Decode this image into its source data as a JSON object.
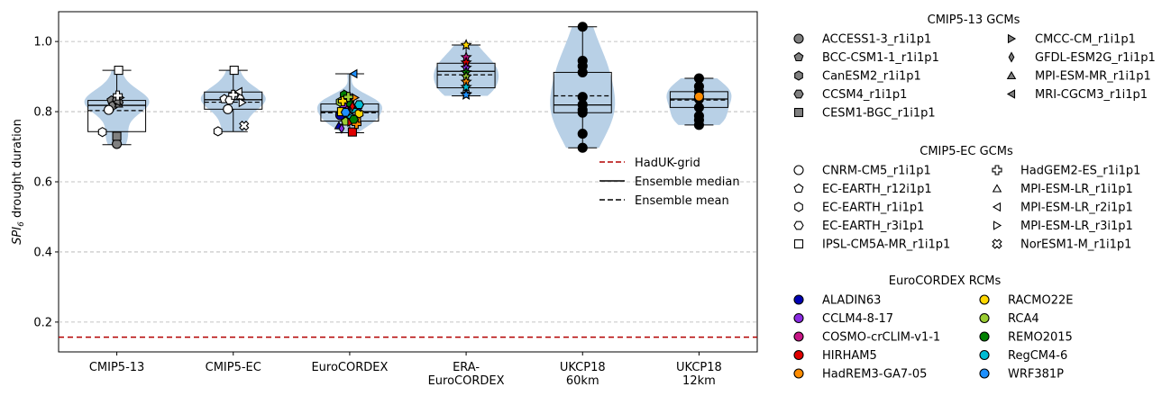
{
  "chart_data": {
    "type": "violin-box-scatter",
    "ylabel": "SPI_6 drought duration",
    "ylabel_parts": {
      "base": "SPI",
      "sub": "6",
      "rest": " drought duration"
    },
    "ylim": [
      0.115,
      1.085
    ],
    "yticks": [
      "0.2",
      "0.4",
      "0.6",
      "0.8",
      "1.0"
    ],
    "grid": "y",
    "reference": {
      "name": "HadUK-grid",
      "value": 0.157,
      "color": "#b30000"
    },
    "categories": [
      {
        "name": "CMIP5-13",
        "lines": [
          "CMIP5-13"
        ],
        "stats": {
          "min": 0.706,
          "q1": 0.743,
          "median": 0.818,
          "mean": 0.803,
          "q3": 0.832,
          "max": 0.918
        }
      },
      {
        "name": "CMIP5-EC",
        "lines": [
          "CMIP5-EC"
        ],
        "stats": {
          "min": 0.743,
          "q1": 0.807,
          "median": 0.834,
          "mean": 0.827,
          "q3": 0.856,
          "max": 0.918
        }
      },
      {
        "name": "EuroCORDEX",
        "lines": [
          "EuroCORDEX"
        ],
        "stats": {
          "min": 0.74,
          "q1": 0.773,
          "median": 0.8,
          "mean": 0.797,
          "q3": 0.822,
          "max": 0.908
        }
      },
      {
        "name": "ERA-EuroCORDEX",
        "lines": [
          "ERA-",
          "EuroCORDEX"
        ],
        "stats": {
          "min": 0.845,
          "q1": 0.868,
          "median": 0.915,
          "mean": 0.905,
          "q3": 0.938,
          "max": 0.99
        }
      },
      {
        "name": "UKCP18 60km",
        "lines": [
          "UKCP18",
          "60km"
        ],
        "stats": {
          "min": 0.697,
          "q1": 0.797,
          "median": 0.819,
          "mean": 0.845,
          "q3": 0.912,
          "max": 1.042
        }
      },
      {
        "name": "UKCP18 12km",
        "lines": [
          "UKCP18",
          "12km"
        ],
        "stats": {
          "min": 0.762,
          "q1": 0.812,
          "median": 0.836,
          "mean": 0.833,
          "q3": 0.857,
          "max": 0.895
        }
      }
    ],
    "series": [
      {
        "name": "CMIP5-13",
        "points": [
          {
            "model": "ACCESS1-3_r1i1p1",
            "y": 0.708
          },
          {
            "model": "BCC-CSM1-1_r1i1p1",
            "y": 0.832
          },
          {
            "model": "CanESM2_r1i1p1",
            "y": 0.818
          },
          {
            "model": "CCSM4_r1i1p1",
            "y": 0.826
          },
          {
            "model": "CESM1-BGC_r1i1p1",
            "y": 0.73
          },
          {
            "model": "CMCC-CM_r1i1p1",
            "y": 0.84
          },
          {
            "model": "GFDL-ESM2G_r1i1p1",
            "y": 0.834
          },
          {
            "model": "MPI-ESM-MR_r1i1p1",
            "y": 0.822
          },
          {
            "model": "MRI-CGCM3_r1i1p1",
            "y": 0.828
          },
          {
            "model": "CNRM-CM5_r1i1p1",
            "y": 0.805
          },
          {
            "model": "EC-EARTH_r1i1p1",
            "y": 0.742
          },
          {
            "model": "IPSL-CM5A-MR_r1i1p1",
            "y": 0.918
          },
          {
            "model": "HadGEM2-ES_r1i1p1",
            "y": 0.846
          }
        ]
      },
      {
        "name": "CMIP5-EC",
        "points": [
          {
            "model": "CNRM-CM5_r1i1p1",
            "y": 0.807
          },
          {
            "model": "EC-EARTH_r12i1p1",
            "y": 0.836
          },
          {
            "model": "EC-EARTH_r1i1p1",
            "y": 0.744
          },
          {
            "model": "EC-EARTH_r3i1p1",
            "y": 0.833
          },
          {
            "model": "IPSL-CM5A-MR_r1i1p1",
            "y": 0.918
          },
          {
            "model": "HadGEM2-ES_r1i1p1",
            "y": 0.848
          },
          {
            "model": "MPI-ESM-LR_r1i1p1",
            "y": 0.845
          },
          {
            "model": "MPI-ESM-LR_r2i1p1",
            "y": 0.857
          },
          {
            "model": "MPI-ESM-LR_r3i1p1",
            "y": 0.826
          },
          {
            "model": "NorESM1-M_r1i1p1",
            "y": 0.76
          }
        ]
      },
      {
        "name": "EuroCORDEX",
        "points": [
          {
            "model": "ALADIN63",
            "y": 0.79
          },
          {
            "model": "CCLM4-8-17",
            "y": 0.812
          },
          {
            "model": "COSMO-crCLIM-v1-1",
            "y": 0.778
          },
          {
            "model": "HIRHAM5",
            "y": 0.742
          },
          {
            "model": "HadREM3-GA7-05",
            "y": 0.78
          },
          {
            "model": "RACMO22E",
            "y": 0.8
          },
          {
            "model": "RCA4",
            "y": 0.772
          },
          {
            "model": "REMO2015",
            "y": 0.825
          },
          {
            "model": "RegCM4-6",
            "y": 0.808
          },
          {
            "model": "WRF381P",
            "y": 0.818
          },
          {
            "model": "ALADIN63",
            "y": 0.76
          },
          {
            "model": "CCLM4-8-17",
            "y": 0.835
          },
          {
            "model": "COSMO-crCLIM-v1-1",
            "y": 0.85
          },
          {
            "model": "HIRHAM5",
            "y": 0.77
          },
          {
            "model": "HadREM3-GA7-05",
            "y": 0.84
          },
          {
            "model": "RACMO22E",
            "y": 0.795
          },
          {
            "model": "RCA4",
            "y": 0.828
          },
          {
            "model": "REMO2015",
            "y": 0.848
          },
          {
            "model": "RegCM4-6",
            "y": 0.785
          },
          {
            "model": "WRF381P",
            "y": 0.908
          },
          {
            "model": "ALADIN63",
            "y": 0.812
          },
          {
            "model": "CCLM4-8-17",
            "y": 0.752
          },
          {
            "model": "COSMO-crCLIM-v1-1",
            "y": 0.805
          },
          {
            "model": "HIRHAM5",
            "y": 0.815
          },
          {
            "model": "HadREM3-GA7-05",
            "y": 0.765
          },
          {
            "model": "RACMO22E",
            "y": 0.83
          },
          {
            "model": "RCA4",
            "y": 0.842
          },
          {
            "model": "REMO2015",
            "y": 0.778
          },
          {
            "model": "RegCM4-6",
            "y": 0.82
          },
          {
            "model": "WRF381P",
            "y": 0.798
          }
        ]
      },
      {
        "name": "ERA-EuroCORDEX",
        "points": [
          {
            "model": "RACMO22E",
            "y": 0.99
          },
          {
            "model": "COSMO-crCLIM-v1-1",
            "y": 0.955
          },
          {
            "model": "HIRHAM5",
            "y": 0.94
          },
          {
            "model": "CCLM4-8-17",
            "y": 0.925
          },
          {
            "model": "REMO2015",
            "y": 0.912
          },
          {
            "model": "RCA4",
            "y": 0.9
          },
          {
            "model": "HadREM3-GA7-05",
            "y": 0.885
          },
          {
            "model": "RegCM4-6",
            "y": 0.87
          },
          {
            "model": "ALADIN63",
            "y": 0.85
          },
          {
            "model": "WRF381P",
            "y": 0.848
          }
        ]
      },
      {
        "name": "UKCP18 60km",
        "points": [
          {
            "model": "",
            "y": 1.042
          },
          {
            "model": "",
            "y": 0.945
          },
          {
            "model": "",
            "y": 0.93
          },
          {
            "model": "",
            "y": 0.912
          },
          {
            "model": "",
            "y": 0.842
          },
          {
            "model": "",
            "y": 0.82
          },
          {
            "model": "",
            "y": 0.805
          },
          {
            "model": "",
            "y": 0.797
          },
          {
            "model": "",
            "y": 0.737
          },
          {
            "model": "",
            "y": 0.697
          }
        ]
      },
      {
        "name": "UKCP18 12km",
        "points": [
          {
            "model": "",
            "y": 0.895
          },
          {
            "model": "",
            "y": 0.872
          },
          {
            "model": "",
            "y": 0.857
          },
          {
            "model": "",
            "y": 0.836
          },
          {
            "model": "",
            "y": 0.812
          },
          {
            "model": "",
            "y": 0.788
          },
          {
            "model": "",
            "y": 0.776
          },
          {
            "model": "",
            "y": 0.762
          },
          {
            "model": "",
            "y": 0.843,
            "highlight": true
          }
        ]
      }
    ],
    "line_legend": {
      "placement": "center-right",
      "entries": [
        {
          "label": "HadUK-grid",
          "style": "dashed",
          "color": "#b30000"
        },
        {
          "label": "Ensemble median",
          "style": "solid",
          "color": "#000000"
        },
        {
          "label": "Ensemble mean",
          "style": "dashed",
          "color": "#000000"
        }
      ]
    },
    "legends": [
      {
        "title": "CMIP5-13 GCMs",
        "fill": "#808080",
        "columns": [
          [
            {
              "label": "ACCESS1-3_r1i1p1",
              "marker": "circle"
            },
            {
              "label": "BCC-CSM1-1_r1i1p1",
              "marker": "pentagon"
            },
            {
              "label": "CanESM2_r1i1p1",
              "marker": "hexagon"
            },
            {
              "label": "CCSM4_r1i1p1",
              "marker": "octagon"
            },
            {
              "label": "CESM1-BGC_r1i1p1",
              "marker": "square"
            }
          ],
          [
            {
              "label": "CMCC-CM_r1i1p1",
              "marker": "tri-right"
            },
            {
              "label": "GFDL-ESM2G_r1i1p1",
              "marker": "thin-diamond"
            },
            {
              "label": "MPI-ESM-MR_r1i1p1",
              "marker": "tri-up"
            },
            {
              "label": "MRI-CGCM3_r1i1p1",
              "marker": "tri-left"
            }
          ]
        ]
      },
      {
        "title": "CMIP5-EC GCMs",
        "fill": "#ffffff",
        "columns": [
          [
            {
              "label": "CNRM-CM5_r1i1p1",
              "marker": "circle"
            },
            {
              "label": "EC-EARTH_r12i1p1",
              "marker": "pentagon"
            },
            {
              "label": "EC-EARTH_r1i1p1",
              "marker": "hexagon"
            },
            {
              "label": "EC-EARTH_r3i1p1",
              "marker": "octagon"
            },
            {
              "label": "IPSL-CM5A-MR_r1i1p1",
              "marker": "square"
            }
          ],
          [
            {
              "label": "HadGEM2-ES_r1i1p1",
              "marker": "plus"
            },
            {
              "label": "MPI-ESM-LR_r1i1p1",
              "marker": "tri-up"
            },
            {
              "label": "MPI-ESM-LR_r2i1p1",
              "marker": "tri-left"
            },
            {
              "label": "MPI-ESM-LR_r3i1p1",
              "marker": "tri-right"
            },
            {
              "label": "NorESM1-M_r1i1p1",
              "marker": "cross"
            }
          ]
        ]
      },
      {
        "title": "EuroCORDEX RCMs",
        "fill": null,
        "columns": [
          [
            {
              "label": "ALADIN63",
              "marker": "circle",
              "color": "#0000b3"
            },
            {
              "label": "CCLM4-8-17",
              "marker": "circle",
              "color": "#8a2be2"
            },
            {
              "label": "COSMO-crCLIM-v1-1",
              "marker": "circle",
              "color": "#c71585"
            },
            {
              "label": "HIRHAM5",
              "marker": "circle",
              "color": "#e00000"
            },
            {
              "label": "HadREM3-GA7-05",
              "marker": "circle",
              "color": "#ff8c00"
            }
          ],
          [
            {
              "label": "RACMO22E",
              "marker": "circle",
              "color": "#ffd700"
            },
            {
              "label": "RCA4",
              "marker": "circle",
              "color": "#9acd32"
            },
            {
              "label": "REMO2015",
              "marker": "circle",
              "color": "#008000"
            },
            {
              "label": "RegCM4-6",
              "marker": "circle",
              "color": "#00bcd4"
            },
            {
              "label": "WRF381P",
              "marker": "circle",
              "color": "#1e90ff"
            }
          ]
        ]
      }
    ],
    "colors": {
      "violin": "#b8d0e6",
      "grid": "#b0b0b0",
      "highlight": "#ff8c00",
      "ukcp_points": "#000000"
    }
  }
}
